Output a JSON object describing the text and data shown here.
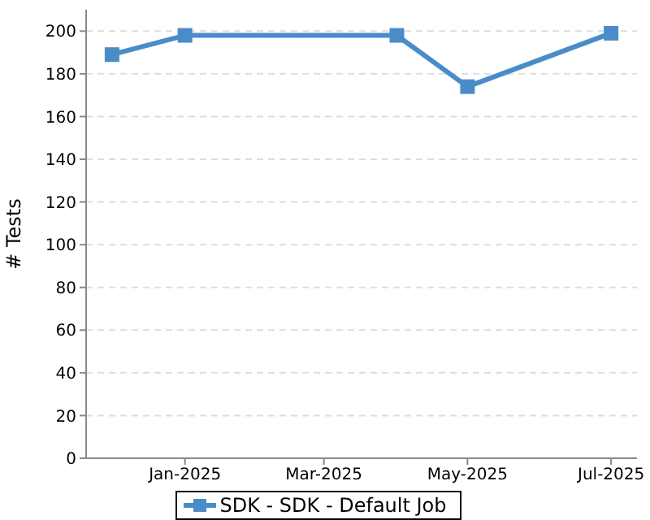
{
  "chart_data": {
    "type": "line",
    "ylabel": "# Tests",
    "x": [
      "2024-12-01",
      "2025-01-01",
      "2025-04-01",
      "2025-05-01",
      "2025-07-01"
    ],
    "series": [
      {
        "name": "SDK - SDK - Default Job",
        "color": "#4a8cc8",
        "values": [
          189,
          198,
          198,
          174,
          199
        ]
      }
    ],
    "xlim": [
      "2024-11-20",
      "2025-07-12"
    ],
    "xticks": [
      {
        "value": "2025-01",
        "label": "Jan-2025"
      },
      {
        "value": "2025-03",
        "label": "Mar-2025"
      },
      {
        "value": "2025-05",
        "label": "May-2025"
      },
      {
        "value": "2025-07",
        "label": "Jul-2025"
      }
    ],
    "ylim": [
      0,
      210
    ],
    "yticks": [
      0,
      20,
      40,
      60,
      80,
      100,
      120,
      140,
      160,
      180,
      200
    ],
    "grid": "y",
    "legend": "bottom",
    "marker": "square",
    "line_style": "solid"
  }
}
